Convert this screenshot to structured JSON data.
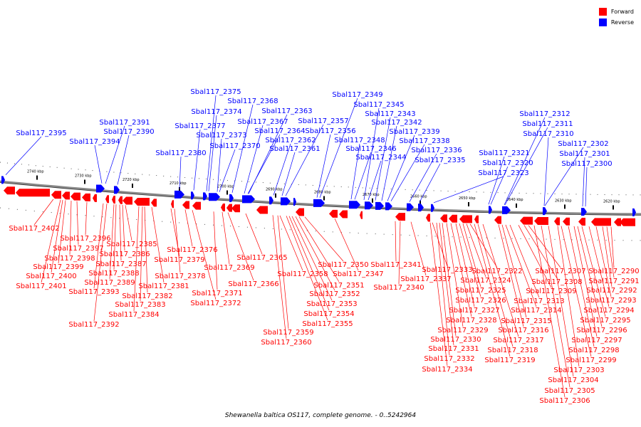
{
  "legend": {
    "forward": {
      "label": "Forward",
      "color": "#ff0000"
    },
    "reverse": {
      "label": "Reverse",
      "color": "#0000ff"
    }
  },
  "caption": "Shewanella baltica OS117, complete genome. - 0..5242964",
  "ticks": [
    "2740 kbp",
    "2730 kbp",
    "2720 kbp",
    "2710 kbp",
    "2700 kbp",
    "2690 kbp",
    "2680 kbp",
    "2670 kbp",
    "2660 kbp",
    "2650 kbp",
    "2640 kbp",
    "2630 kbp",
    "2620 kbp"
  ],
  "reverse_labels": [
    "Sbal117_2395",
    "Sbal117_2394",
    "Sbal117_2391",
    "Sbal117_2390",
    "Sbal117_2380",
    "Sbal117_2377",
    "Sbal117_2375",
    "Sbal117_2374",
    "Sbal117_2373",
    "Sbal117_2370",
    "Sbal117_2368",
    "Sbal117_2367",
    "Sbal117_2364",
    "Sbal117_2363",
    "Sbal117_2362",
    "Sbal117_2361",
    "Sbal117_2357",
    "Sbal117_2356",
    "Sbal117_2349",
    "Sbal117_2348",
    "Sbal117_2346",
    "Sbal117_2345",
    "Sbal117_2344",
    "Sbal117_2343",
    "Sbal117_2342",
    "Sbal117_2339",
    "Sbal117_2338",
    "Sbal117_2336",
    "Sbal117_2335",
    "Sbal117_2323",
    "Sbal117_2321",
    "Sbal117_2320",
    "Sbal117_2312",
    "Sbal117_2311",
    "Sbal117_2310",
    "Sbal117_2302",
    "Sbal117_2301",
    "Sbal117_2300"
  ],
  "forward_labels": [
    "Sbal117_2402",
    "Sbal117_2401",
    "Sbal117_2400",
    "Sbal117_2399",
    "Sbal117_2398",
    "Sbal117_2397",
    "Sbal117_2396",
    "Sbal117_2393",
    "Sbal117_2392",
    "Sbal117_2389",
    "Sbal117_2388",
    "Sbal117_2387",
    "Sbal117_2386",
    "Sbal117_2385",
    "Sbal117_2384",
    "Sbal117_2383",
    "Sbal117_2382",
    "Sbal117_2381",
    "Sbal117_2379",
    "Sbal117_2378",
    "Sbal117_2376",
    "Sbal117_2372",
    "Sbal117_2371",
    "Sbal117_2369",
    "Sbal117_2366",
    "Sbal117_2365",
    "Sbal117_2360",
    "Sbal117_2359",
    "Sbal117_2358",
    "Sbal117_2355",
    "Sbal117_2354",
    "Sbal117_2353",
    "Sbal117_2352",
    "Sbal117_2351",
    "Sbal117_2350",
    "Sbal117_2347",
    "Sbal117_2341",
    "Sbal117_2340",
    "Sbal117_2337",
    "Sbal117_2334",
    "Sbal117_2333",
    "Sbal117_2332",
    "Sbal117_2331",
    "Sbal117_2330",
    "Sbal117_2329",
    "Sbal117_2328",
    "Sbal117_2327",
    "Sbal117_2326",
    "Sbal117_2325",
    "Sbal117_2324",
    "Sbal117_2322",
    "Sbal117_2319",
    "Sbal117_2318",
    "Sbal117_2317",
    "Sbal117_2316",
    "Sbal117_2315",
    "Sbal117_2314",
    "Sbal117_2313",
    "Sbal117_2309",
    "Sbal117_2308",
    "Sbal117_2307",
    "Sbal117_2306",
    "Sbal117_2305",
    "Sbal117_2304",
    "Sbal117_2303",
    "Sbal117_2299",
    "Sbal117_2298",
    "Sbal117_2297",
    "Sbal117_2296",
    "Sbal117_2295",
    "Sbal117_2294",
    "Sbal117_2293",
    "Sbal117_2292",
    "Sbal117_2291",
    "Sbal117_2290"
  ]
}
